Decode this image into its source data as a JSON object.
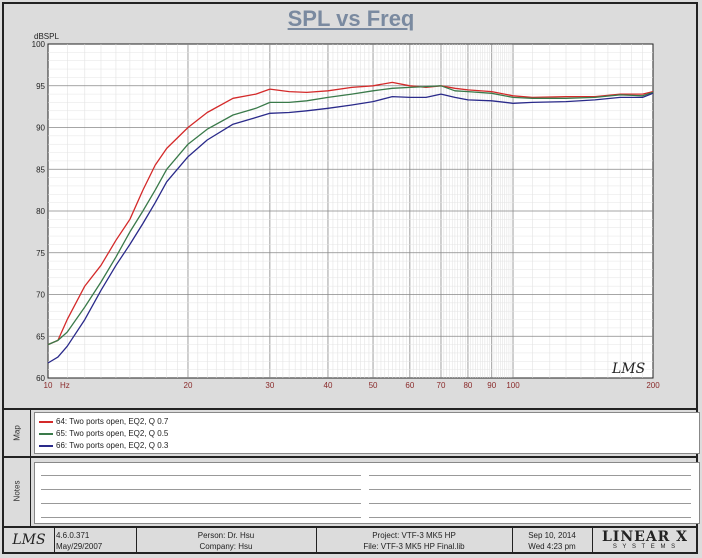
{
  "title": "SPL vs Freq",
  "chart_data": {
    "type": "line",
    "title": "SPL vs Freq",
    "ylabel": "dBSPL",
    "xlabel": "Hz",
    "xscale": "log",
    "xlim": [
      10,
      200
    ],
    "ylim": [
      60,
      100
    ],
    "yticks": [
      60,
      65,
      70,
      75,
      80,
      85,
      90,
      95,
      100
    ],
    "xticks": [
      10,
      20,
      30,
      40,
      50,
      60,
      70,
      80,
      90,
      100,
      200
    ],
    "xtick_labels": [
      "10",
      "20",
      "30",
      "40",
      "50",
      "60",
      "70",
      "80",
      "90",
      "100",
      "200"
    ],
    "x_unit_label": "Hz",
    "grid": true,
    "watermark": "LMS",
    "series": [
      {
        "name": "64: Two ports open, EQ2, Q 0.7",
        "color": "#d42a2a",
        "x": [
          10,
          10.5,
          11,
          12,
          13,
          14,
          15,
          16,
          17,
          18,
          20,
          22,
          25,
          28,
          30,
          33,
          36,
          40,
          45,
          50,
          55,
          60,
          65,
          70,
          75,
          80,
          90,
          100,
          110,
          130,
          150,
          170,
          190,
          200
        ],
        "y": [
          64,
          64.5,
          67,
          71,
          73.5,
          76.5,
          79,
          82.5,
          85.5,
          87.5,
          90,
          91.8,
          93.5,
          94,
          94.6,
          94.3,
          94.2,
          94.4,
          94.8,
          95,
          95.4,
          95,
          94.8,
          95,
          94.7,
          94.5,
          94.3,
          93.8,
          93.6,
          93.7,
          93.7,
          94,
          94,
          94.3
        ]
      },
      {
        "name": "65: Two ports open, EQ2, Q 0.5",
        "color": "#3a7a4a",
        "x": [
          10,
          10.5,
          11,
          12,
          13,
          14,
          15,
          16,
          17,
          18,
          20,
          22,
          25,
          28,
          30,
          33,
          36,
          40,
          45,
          50,
          55,
          60,
          65,
          70,
          75,
          80,
          90,
          100,
          110,
          130,
          150,
          170,
          190,
          200
        ],
        "y": [
          64,
          64.5,
          65.5,
          68.5,
          71.5,
          74.5,
          77.5,
          80,
          82.5,
          85,
          88,
          89.8,
          91.5,
          92.3,
          93,
          93,
          93.2,
          93.6,
          94,
          94.4,
          94.7,
          94.8,
          94.9,
          95,
          94.4,
          94.3,
          94.1,
          93.6,
          93.5,
          93.5,
          93.6,
          93.9,
          93.8,
          94.2
        ]
      },
      {
        "name": "66: Two ports open, EQ2, Q 0.3",
        "color": "#2a2a8a",
        "x": [
          10,
          10.5,
          11,
          12,
          13,
          14,
          15,
          16,
          17,
          18,
          20,
          22,
          25,
          28,
          30,
          33,
          36,
          40,
          45,
          50,
          55,
          60,
          65,
          70,
          75,
          80,
          90,
          100,
          110,
          130,
          150,
          170,
          190,
          200
        ],
        "y": [
          61.8,
          62.5,
          63.8,
          67,
          70.5,
          73.5,
          76,
          78.5,
          81,
          83.5,
          86.5,
          88.5,
          90.4,
          91.2,
          91.7,
          91.8,
          92,
          92.3,
          92.7,
          93.1,
          93.7,
          93.6,
          93.6,
          94,
          93.6,
          93.3,
          93.2,
          92.9,
          93,
          93.1,
          93.3,
          93.6,
          93.6,
          94.1
        ]
      }
    ]
  },
  "map_panel": {
    "label": "Map"
  },
  "notes_panel": {
    "label": "Notes"
  },
  "footer": {
    "logo": "LMS",
    "version": "4.6.0.371",
    "version_date": "May/29/2007",
    "person": "Person: Dr. Hsu",
    "company": "Company: Hsu",
    "project": "Project: VTF-3 MK5 HP",
    "file": "File: VTF-3 MK5 HP Final.lib",
    "date": "Sep 10, 2014",
    "time": "Wed  4:23 pm",
    "brand": "LINEAR X",
    "brand_sub": "S Y S T E M S"
  }
}
